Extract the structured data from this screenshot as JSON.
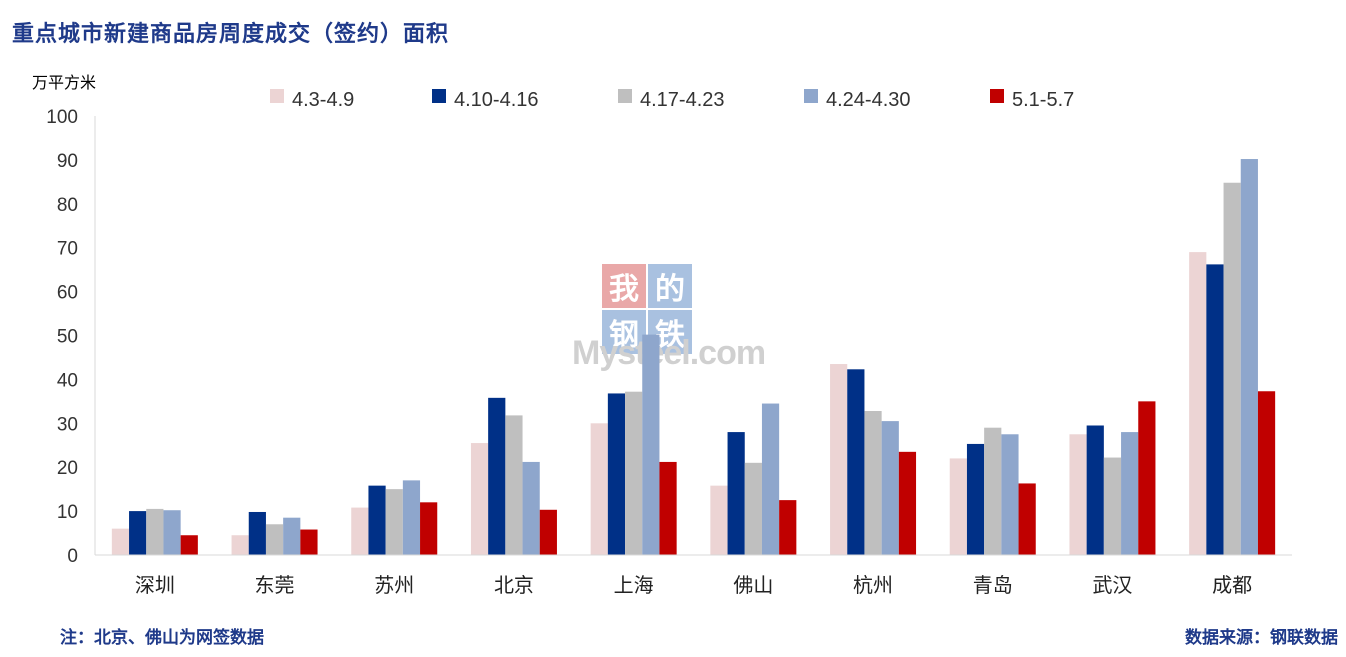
{
  "title": "重点城市新建商品房周度成交（签约）面积",
  "footer": {
    "note": "注：北京、佛山为网签数据",
    "source": "数据来源：钢联数据"
  },
  "watermark": {
    "chars": [
      "我",
      "的",
      "钢",
      "铁"
    ],
    "text": "Mysteel.com"
  },
  "colors": {
    "title": "#1f3a8a",
    "series": [
      "#ecd4d4",
      "#003087",
      "#bfbfbf",
      "#8ea6cc",
      "#c00000"
    ]
  },
  "chart_data": {
    "type": "bar",
    "ylabel": "万平方米",
    "ylim": [
      0,
      100
    ],
    "yticks": [
      0,
      10,
      20,
      30,
      40,
      50,
      60,
      70,
      80,
      90,
      100
    ],
    "legend_position": "top",
    "categories": [
      "深圳",
      "东莞",
      "苏州",
      "北京",
      "上海",
      "佛山",
      "杭州",
      "青岛",
      "武汉",
      "成都"
    ],
    "series": [
      {
        "name": "4.3-4.9",
        "values": [
          6.0,
          4.5,
          10.8,
          25.5,
          30.0,
          15.8,
          43.5,
          22.0,
          27.5,
          69.0
        ]
      },
      {
        "name": "4.10-4.16",
        "values": [
          10.0,
          9.8,
          15.8,
          35.8,
          36.8,
          28.0,
          42.3,
          25.3,
          29.5,
          66.2
        ]
      },
      {
        "name": "4.17-4.23",
        "values": [
          10.5,
          7.0,
          15.0,
          31.8,
          37.2,
          21.0,
          32.8,
          29.0,
          22.2,
          84.8
        ]
      },
      {
        "name": "4.24-4.30",
        "values": [
          10.2,
          8.5,
          17.0,
          21.2,
          50.2,
          34.5,
          30.5,
          27.5,
          28.0,
          90.2
        ]
      },
      {
        "name": "5.1-5.7",
        "values": [
          4.5,
          5.8,
          12.0,
          10.3,
          21.2,
          12.5,
          23.5,
          16.3,
          35.0,
          37.3
        ]
      }
    ]
  }
}
